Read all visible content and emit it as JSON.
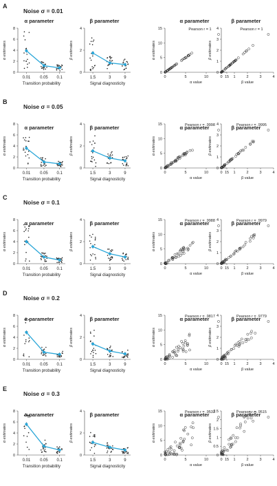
{
  "panels": [
    {
      "letter": "A",
      "title": "Noise σ = 0.01",
      "alpha_means": [
        3.9,
        1.2,
        0.8
      ],
      "beta_means": [
        1.75,
        0.85,
        0.7
      ],
      "alpha_r": "Pearson r = 1",
      "beta_r": "Pearson r = 1",
      "alpha_scatter_ylim": [
        0,
        15
      ],
      "beta_scatter_ylim": [
        0,
        4
      ],
      "alpha_scatter_yticks": [
        "0",
        "5",
        "10",
        "15"
      ],
      "alpha_scatter_xticks": [
        "0",
        "5",
        "10",
        "15"
      ],
      "beta_scatter_yticks": [
        "0",
        "1",
        "2",
        "3",
        "4"
      ],
      "beta_scatter_xticks": [
        "0",
        "1",
        "2",
        "3",
        "4"
      ]
    },
    {
      "letter": "B",
      "title": "Noise σ = 0.05",
      "alpha_means": [
        3.6,
        1.1,
        0.75
      ],
      "beta_means": [
        1.55,
        0.9,
        0.65
      ],
      "alpha_r": "Pearson r = .9998",
      "beta_r": "Pearson r = .9995",
      "alpha_scatter_ylim": [
        0,
        15
      ],
      "beta_scatter_ylim": [
        0,
        4
      ],
      "alpha_scatter_yticks": [
        "0",
        "5",
        "10",
        "15"
      ],
      "alpha_scatter_xticks": [
        "0",
        "5",
        "10",
        "15"
      ],
      "beta_scatter_yticks": [
        "0",
        "1",
        "2",
        "3",
        "4"
      ],
      "beta_scatter_xticks": [
        "0",
        "1",
        "2",
        "3",
        "4"
      ]
    },
    {
      "letter": "C",
      "title": "Noise σ = 0.1",
      "alpha_means": [
        4.0,
        1.2,
        0.65
      ],
      "beta_means": [
        1.55,
        0.9,
        0.6
      ],
      "alpha_r": "Pearson r = .9988",
      "beta_r": "Pearson r = .9979",
      "alpha_scatter_ylim": [
        0,
        15
      ],
      "beta_scatter_ylim": [
        0,
        4
      ],
      "alpha_scatter_yticks": [
        "0",
        "5",
        "10",
        "15"
      ],
      "alpha_scatter_xticks": [
        "0",
        "5",
        "10",
        "15"
      ],
      "beta_scatter_yticks": [
        "0",
        "1",
        "2",
        "3",
        "4"
      ],
      "beta_scatter_xticks": [
        "0",
        "1",
        "2",
        "3",
        "4"
      ]
    },
    {
      "letter": "D",
      "title": "Noise σ = 0.2",
      "alpha_means": [
        4.9,
        1.3,
        0.9
      ],
      "beta_means": [
        1.4,
        0.75,
        0.5
      ],
      "alpha_r": "Pearson r = .9817",
      "beta_r": "Pearson r = .9779",
      "alpha_scatter_ylim": [
        0,
        15
      ],
      "beta_scatter_ylim": [
        0,
        4
      ],
      "alpha_scatter_yticks": [
        "0",
        "5",
        "10",
        "15"
      ],
      "alpha_scatter_xticks": [
        "0",
        "5",
        "10",
        "15"
      ],
      "beta_scatter_yticks": [
        "0",
        "1",
        "2",
        "3",
        "4"
      ],
      "beta_scatter_xticks": [
        "0",
        "1",
        "2",
        "3",
        "4"
      ]
    },
    {
      "letter": "E",
      "title": "Noise σ = 0.3",
      "alpha_means": [
        5.6,
        1.6,
        0.9
      ],
      "beta_means": [
        1.15,
        0.7,
        0.45
      ],
      "alpha_r": "Pearson r = .9533",
      "beta_r": "Pearson r = .9515",
      "alpha_scatter_ylim": [
        0,
        15
      ],
      "beta_scatter_ylim": [
        0,
        2.5
      ],
      "alpha_scatter_yticks": [
        "0",
        "5",
        "10",
        "15"
      ],
      "alpha_scatter_xticks": [
        "0",
        "5",
        "10",
        "15"
      ],
      "beta_scatter_yticks": [
        "0",
        "0.5",
        "1",
        "1.5",
        "2",
        "2.5"
      ],
      "beta_scatter_xticks": [
        "0",
        "1",
        "2",
        "3",
        "4"
      ]
    }
  ],
  "labels": {
    "alpha_param": "α parameter",
    "beta_param": "β parameter",
    "alpha_estimates": "α estimates",
    "beta_estimates": "β estimates",
    "alpha_value": "α value",
    "beta_value": "β value",
    "transition_probability": "Transition probability",
    "signal_diagnosticity": "Signal diagnosticity"
  },
  "alpha_x_ticks": [
    "0.01",
    "0.05",
    "0.1"
  ],
  "beta_x_ticks": [
    "1.5",
    "3",
    "9"
  ],
  "alpha_y_ticks": [
    "0",
    "2",
    "4",
    "6",
    "8"
  ],
  "beta_y_ticks": [
    "0",
    "2",
    "4"
  ],
  "colors": {
    "line": "#2aa6d8",
    "dots": "#222222",
    "open_circle": "#333333"
  },
  "chart_data": [
    {
      "type": "line",
      "panel": "A",
      "categories": [
        "0.01",
        "0.05",
        "0.1"
      ],
      "series": [
        {
          "values": [
            3.9,
            1.2,
            0.8
          ]
        }
      ],
      "xlabel": "Transition probability",
      "ylabel": "α estimates",
      "ylim": [
        0,
        8
      ]
    },
    {
      "type": "line",
      "panel": "A",
      "categories": [
        "1.5",
        "3",
        "9"
      ],
      "series": [
        {
          "values": [
            1.75,
            0.85,
            0.7
          ]
        }
      ],
      "xlabel": "Signal diagnosticity",
      "ylabel": "β estimates",
      "ylim": [
        0,
        4
      ]
    },
    {
      "type": "scatter",
      "panel": "A",
      "xlabel": "α value",
      "ylabel": "α estimates",
      "annotation": "Pearson r = 1",
      "xlim": [
        0,
        15
      ],
      "ylim": [
        0,
        15
      ]
    },
    {
      "type": "scatter",
      "panel": "A",
      "xlabel": "β value",
      "ylabel": "β estimates",
      "annotation": "Pearson r = 1",
      "xlim": [
        0,
        4
      ],
      "ylim": [
        0,
        4
      ]
    }
  ]
}
